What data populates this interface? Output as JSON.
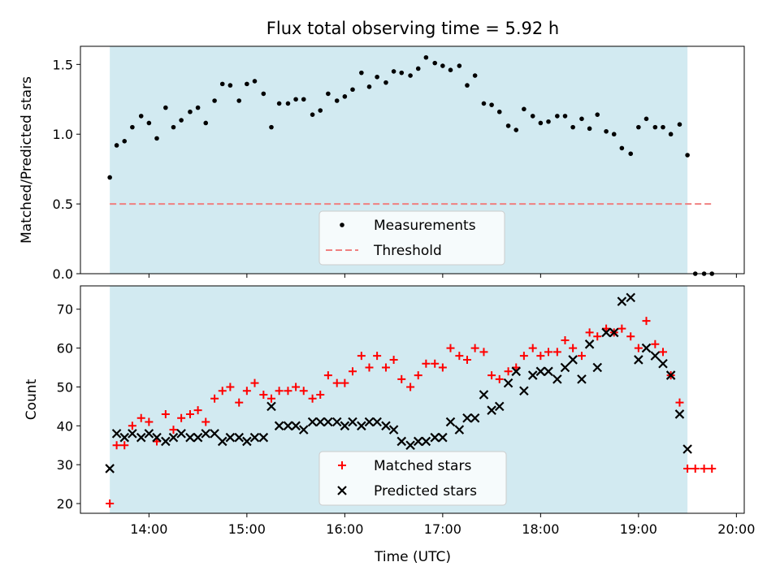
{
  "title": "Flux total observing time = 5.92 h",
  "colors": {
    "shade": "#add8e6",
    "measurement": "#000000",
    "threshold": "#f08080",
    "matched": "#ff0000",
    "predicted": "#000000"
  },
  "chart_data": [
    {
      "type": "scatter",
      "ylabel": "Matched/Predicted stars",
      "ylim": [
        0,
        1.63
      ],
      "yticks": [
        0.0,
        0.5,
        1.0,
        1.5
      ],
      "ytick_labels": [
        "0.0",
        "0.5",
        "1.0",
        "1.5"
      ],
      "xlim_hours": [
        13.3,
        20.08
      ],
      "shaded_span_hours": [
        13.6,
        19.5
      ],
      "legend": {
        "position": "lower center",
        "entries": [
          "Measurements",
          "Threshold"
        ]
      },
      "threshold": {
        "name": "Threshold",
        "y": 0.5,
        "x_hours": [
          13.6,
          19.75
        ],
        "style": "dashed"
      },
      "series": [
        {
          "name": "Measurements",
          "x_hours": [
            13.6,
            13.67,
            13.75,
            13.83,
            13.92,
            14.0,
            14.08,
            14.17,
            14.25,
            14.33,
            14.42,
            14.5,
            14.58,
            14.67,
            14.75,
            14.83,
            14.92,
            15.0,
            15.08,
            15.17,
            15.25,
            15.33,
            15.42,
            15.5,
            15.58,
            15.67,
            15.75,
            15.83,
            15.92,
            16.0,
            16.08,
            16.17,
            16.25,
            16.33,
            16.42,
            16.5,
            16.58,
            16.67,
            16.75,
            16.83,
            16.92,
            17.0,
            17.08,
            17.17,
            17.25,
            17.33,
            17.42,
            17.5,
            17.58,
            17.67,
            17.75,
            17.83,
            17.92,
            18.0,
            18.08,
            18.17,
            18.25,
            18.33,
            18.42,
            18.5,
            18.58,
            18.67,
            18.75,
            18.83,
            18.92,
            19.0,
            19.08,
            19.17,
            19.25,
            19.33,
            19.42,
            19.5,
            19.58,
            19.67,
            19.75
          ],
          "y": [
            0.69,
            0.92,
            0.95,
            1.05,
            1.13,
            1.08,
            0.97,
            1.19,
            1.05,
            1.1,
            1.16,
            1.19,
            1.08,
            1.24,
            1.36,
            1.35,
            1.24,
            1.36,
            1.38,
            1.29,
            1.05,
            1.22,
            1.22,
            1.25,
            1.25,
            1.14,
            1.17,
            1.29,
            1.24,
            1.27,
            1.32,
            1.44,
            1.34,
            1.41,
            1.37,
            1.45,
            1.44,
            1.42,
            1.47,
            1.55,
            1.51,
            1.49,
            1.46,
            1.49,
            1.35,
            1.42,
            1.22,
            1.21,
            1.16,
            1.06,
            1.03,
            1.18,
            1.13,
            1.08,
            1.09,
            1.13,
            1.13,
            1.05,
            1.11,
            1.04,
            1.14,
            1.02,
            1.0,
            0.9,
            0.86,
            1.05,
            1.11,
            1.05,
            1.05,
            1.0,
            1.07,
            0.85,
            0.0,
            0.0,
            0.0
          ]
        }
      ]
    },
    {
      "type": "scatter",
      "xlabel": "Time (UTC)",
      "ylabel": "Count",
      "ylim": [
        17.5,
        76
      ],
      "yticks": [
        20,
        30,
        40,
        50,
        60,
        70
      ],
      "ytick_labels": [
        "20",
        "30",
        "40",
        "50",
        "60",
        "70"
      ],
      "xlim_hours": [
        13.3,
        20.08
      ],
      "xticks_hours": [
        14,
        15,
        16,
        17,
        18,
        19,
        20
      ],
      "xtick_labels": [
        "14:00",
        "15:00",
        "16:00",
        "17:00",
        "18:00",
        "19:00",
        "20:00"
      ],
      "shaded_span_hours": [
        13.6,
        19.5
      ],
      "legend": {
        "position": "lower center",
        "entries": [
          "Matched stars",
          "Predicted stars"
        ]
      },
      "series": [
        {
          "name": "Matched stars",
          "marker": "plus",
          "x_hours": [
            13.6,
            13.67,
            13.75,
            13.83,
            13.92,
            14.0,
            14.08,
            14.17,
            14.25,
            14.33,
            14.42,
            14.5,
            14.58,
            14.67,
            14.75,
            14.83,
            14.92,
            15.0,
            15.08,
            15.17,
            15.25,
            15.33,
            15.42,
            15.5,
            15.58,
            15.67,
            15.75,
            15.83,
            15.92,
            16.0,
            16.08,
            16.17,
            16.25,
            16.33,
            16.42,
            16.5,
            16.58,
            16.67,
            16.75,
            16.83,
            16.92,
            17.0,
            17.08,
            17.17,
            17.25,
            17.33,
            17.42,
            17.5,
            17.58,
            17.67,
            17.75,
            17.83,
            17.92,
            18.0,
            18.08,
            18.17,
            18.25,
            18.33,
            18.42,
            18.5,
            18.58,
            18.67,
            18.75,
            18.83,
            18.92,
            19.0,
            19.08,
            19.17,
            19.25,
            19.33,
            19.42,
            19.5,
            19.58,
            19.67,
            19.75
          ],
          "y": [
            20,
            35,
            35,
            40,
            42,
            41,
            36,
            43,
            39,
            42,
            43,
            44,
            41,
            47,
            49,
            50,
            46,
            49,
            51,
            48,
            47,
            49,
            49,
            50,
            49,
            47,
            48,
            53,
            51,
            51,
            54,
            58,
            55,
            58,
            55,
            57,
            52,
            50,
            53,
            56,
            56,
            55,
            60,
            58,
            57,
            60,
            59,
            53,
            52,
            54,
            55,
            58,
            60,
            58,
            59,
            59,
            62,
            60,
            58,
            64,
            63,
            65,
            64,
            65,
            63,
            60,
            67,
            61,
            59,
            53,
            46,
            29,
            29,
            29,
            29
          ]
        },
        {
          "name": "Predicted stars",
          "marker": "x",
          "x_hours": [
            13.6,
            13.67,
            13.75,
            13.83,
            13.92,
            14.0,
            14.08,
            14.17,
            14.25,
            14.33,
            14.42,
            14.5,
            14.58,
            14.67,
            14.75,
            14.83,
            14.92,
            15.0,
            15.08,
            15.17,
            15.25,
            15.33,
            15.42,
            15.5,
            15.58,
            15.67,
            15.75,
            15.83,
            15.92,
            16.0,
            16.08,
            16.17,
            16.25,
            16.33,
            16.42,
            16.5,
            16.58,
            16.67,
            16.75,
            16.83,
            16.92,
            17.0,
            17.08,
            17.17,
            17.25,
            17.33,
            17.42,
            17.5,
            17.58,
            17.67,
            17.75,
            17.83,
            17.92,
            18.0,
            18.08,
            18.17,
            18.25,
            18.33,
            18.42,
            18.5,
            18.58,
            18.67,
            18.75,
            18.83,
            18.92,
            19.0,
            19.08,
            19.17,
            19.25,
            19.33,
            19.42,
            19.5
          ],
          "y": [
            29,
            38,
            37,
            38,
            37,
            38,
            37,
            36,
            37,
            38,
            37,
            37,
            38,
            38,
            36,
            37,
            37,
            36,
            37,
            37,
            45,
            40,
            40,
            40,
            39,
            41,
            41,
            41,
            41,
            40,
            41,
            40,
            41,
            41,
            40,
            39,
            36,
            35,
            36,
            36,
            37,
            37,
            41,
            39,
            42,
            42,
            48,
            44,
            45,
            51,
            54,
            49,
            53,
            54,
            54,
            52,
            55,
            57,
            52,
            61,
            55,
            64,
            64,
            72,
            73,
            57,
            60,
            58,
            56,
            53,
            43,
            34
          ]
        }
      ]
    }
  ]
}
